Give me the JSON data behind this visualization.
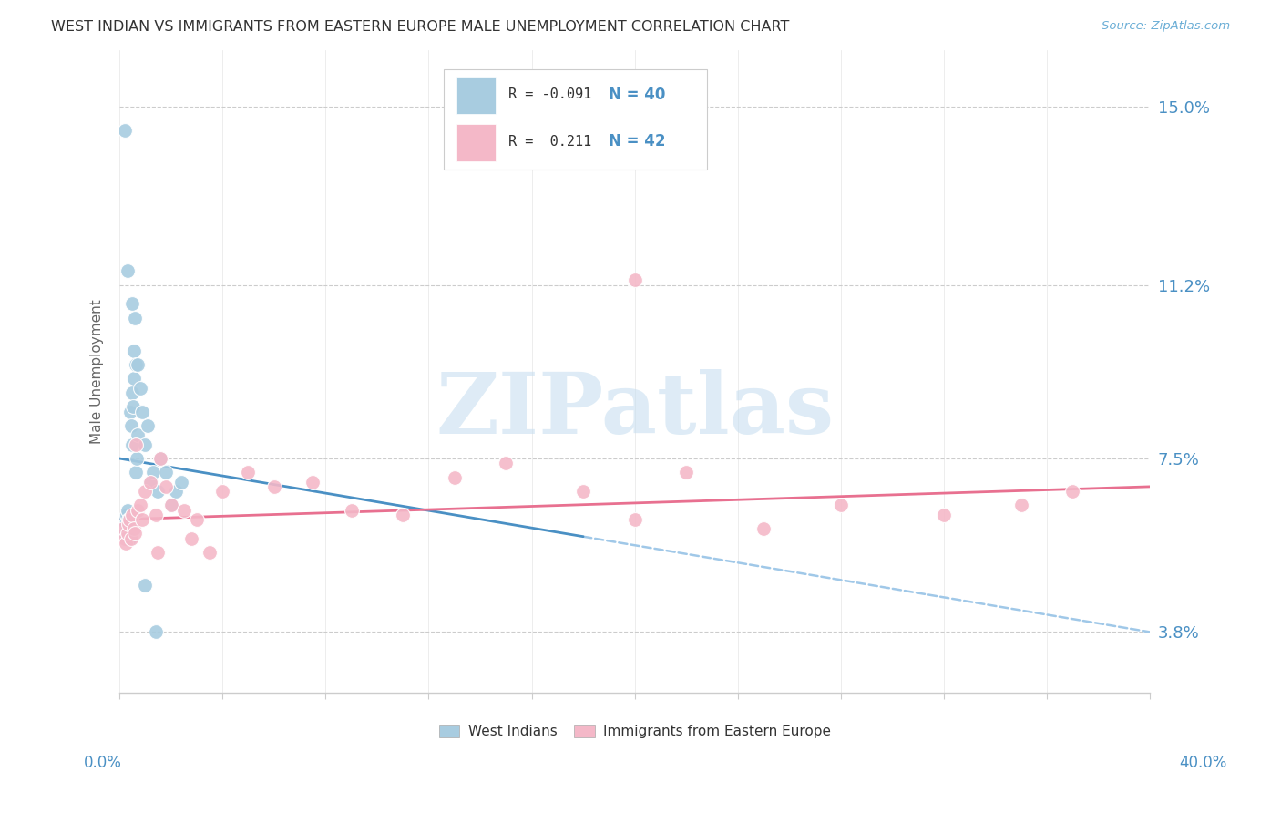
{
  "title": "WEST INDIAN VS IMMIGRANTS FROM EASTERN EUROPE MALE UNEMPLOYMENT CORRELATION CHART",
  "source": "Source: ZipAtlas.com",
  "ylabel": "Male Unemployment",
  "ytick_positions": [
    3.8,
    7.5,
    11.2,
    15.0
  ],
  "ytick_labels": [
    "3.8%",
    "7.5%",
    "11.2%",
    "15.0%"
  ],
  "xmin": 0.0,
  "xmax": 40.0,
  "ymin": 2.5,
  "ymax": 16.2,
  "blue_color": "#a8cce0",
  "pink_color": "#f4b8c8",
  "blue_line_color": "#4a90c4",
  "pink_line_color": "#e87090",
  "blue_dash_color": "#a0c8e8",
  "axis_color": "#cccccc",
  "tick_label_color": "#4a90c4",
  "title_color": "#333333",
  "source_color": "#6baed6",
  "watermark_color": "#c8dff0",
  "watermark": "ZIPatlas",
  "legend_r1": "R = -0.091",
  "legend_n1": "N = 40",
  "legend_r2": "R =  0.211",
  "legend_n2": "N = 42",
  "west_indians_x": [
    0.15,
    0.18,
    0.22,
    0.25,
    0.28,
    0.3,
    0.32,
    0.35,
    0.38,
    0.4,
    0.42,
    0.45,
    0.48,
    0.5,
    0.52,
    0.55,
    0.58,
    0.6,
    0.62,
    0.65,
    0.68,
    0.7,
    0.8,
    0.9,
    1.0,
    1.1,
    1.2,
    1.3,
    1.5,
    1.6,
    1.8,
    2.0,
    2.2,
    2.4,
    0.2,
    0.3,
    0.5,
    0.7,
    1.0,
    1.4
  ],
  "west_indians_y": [
    6.2,
    6.0,
    5.9,
    6.1,
    6.3,
    6.4,
    6.0,
    6.2,
    5.8,
    6.1,
    8.5,
    8.2,
    7.8,
    8.9,
    8.6,
    9.2,
    9.8,
    10.5,
    9.5,
    7.2,
    7.5,
    8.0,
    9.0,
    8.5,
    7.8,
    8.2,
    7.0,
    7.2,
    6.8,
    7.5,
    7.2,
    6.5,
    6.8,
    7.0,
    14.5,
    11.5,
    10.8,
    9.5,
    4.8,
    3.8
  ],
  "east_europe_x": [
    0.15,
    0.2,
    0.25,
    0.3,
    0.35,
    0.4,
    0.45,
    0.5,
    0.55,
    0.6,
    0.7,
    0.8,
    0.9,
    1.0,
    1.2,
    1.4,
    1.6,
    1.8,
    2.0,
    2.5,
    3.0,
    3.5,
    4.0,
    5.0,
    6.0,
    7.5,
    9.0,
    11.0,
    13.0,
    15.0,
    18.0,
    20.0,
    22.0,
    25.0,
    28.0,
    32.0,
    35.0,
    37.0,
    2.8,
    1.5,
    0.65,
    20.0
  ],
  "east_europe_y": [
    6.0,
    5.8,
    5.7,
    5.9,
    6.1,
    6.2,
    5.8,
    6.3,
    6.0,
    5.9,
    6.4,
    6.5,
    6.2,
    6.8,
    7.0,
    6.3,
    7.5,
    6.9,
    6.5,
    6.4,
    6.2,
    5.5,
    6.8,
    7.2,
    6.9,
    7.0,
    6.4,
    6.3,
    7.1,
    7.4,
    6.8,
    6.2,
    7.2,
    6.0,
    6.5,
    6.3,
    6.5,
    6.8,
    5.8,
    5.5,
    7.8,
    11.3
  ]
}
